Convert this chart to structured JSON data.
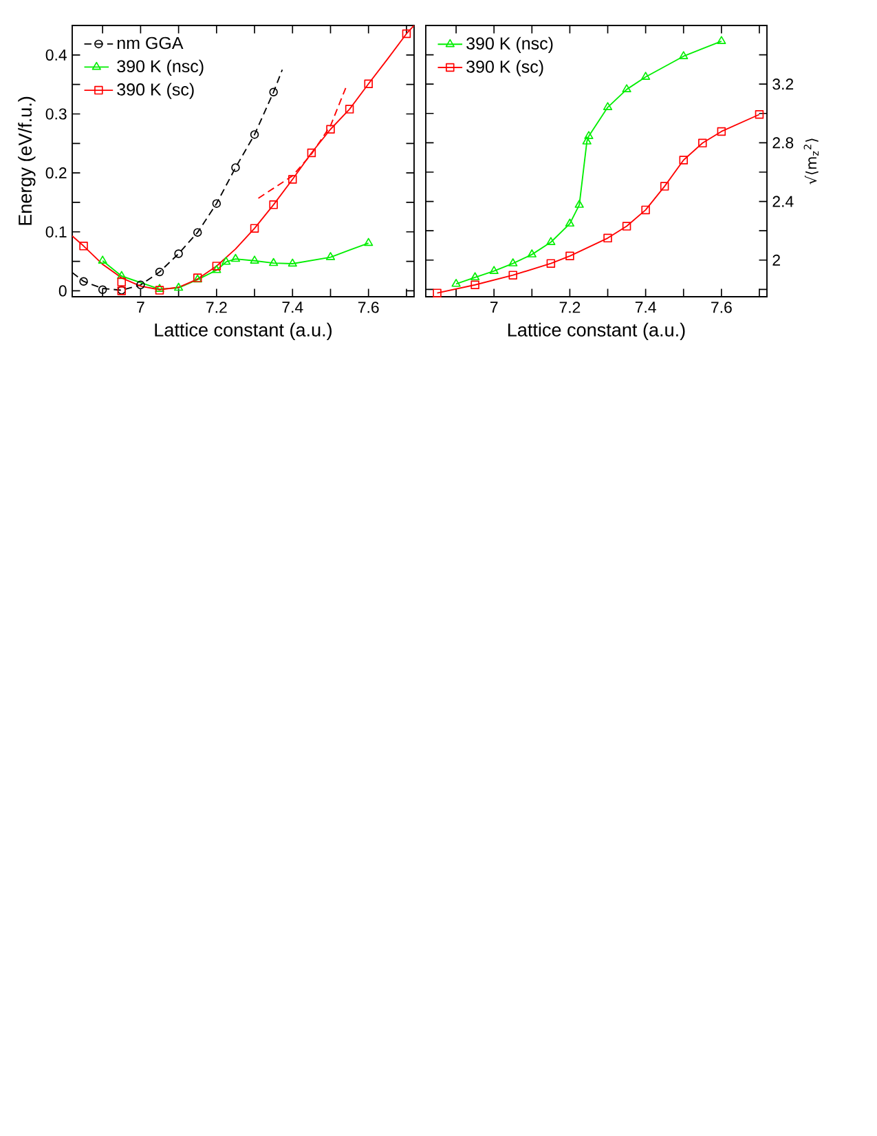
{
  "chart_data": [
    {
      "type": "scatter",
      "xlabel": "Lattice constant (a.u.)",
      "ylabel": "Energy (eV/f.u.)",
      "xlim": [
        6.82,
        7.72
      ],
      "ylim": [
        -0.01,
        0.45
      ],
      "xticks": [
        {
          "value": 6.9,
          "label": null
        },
        7,
        {
          "value": 7.1,
          "label": null
        },
        7.2,
        {
          "value": 7.3,
          "label": null
        },
        7.4,
        {
          "value": 7.5,
          "label": null
        },
        7.6,
        {
          "value": 7.7,
          "label": null
        }
      ],
      "yticks": [
        0,
        {
          "value": 0.05,
          "label": null
        },
        0.1,
        {
          "value": 0.15,
          "label": null
        },
        0.2,
        {
          "value": 0.25,
          "label": null
        },
        0.3,
        {
          "value": 0.35,
          "label": null
        },
        0.4
      ],
      "legend": "top left",
      "series": [
        {
          "name": "nm GGA",
          "type": "scatter",
          "color": "#000000",
          "marker": "circle",
          "line_style": "dashed",
          "x": [
            6.85,
            6.9,
            6.95,
            7.0,
            7.05,
            7.1,
            7.15,
            7.2,
            7.25,
            7.3,
            7.35
          ],
          "values": [
            0.016,
            0.002,
            0.001,
            0.01,
            0.032,
            0.063,
            0.099,
            0.148,
            0.209,
            0.265,
            0.337
          ]
        },
        {
          "name": "390 K (nsc)",
          "type": "line",
          "color": "#00ee00",
          "marker": "triangle",
          "line_style": "solid",
          "x": [
            6.9,
            6.95,
            7.05,
            7.1,
            7.15,
            7.2,
            7.225,
            7.25,
            7.3,
            7.35,
            7.4,
            7.5,
            7.6
          ],
          "values": [
            0.051,
            0.025,
            0.003,
            0.005,
            0.019,
            0.035,
            0.049,
            0.054,
            0.051,
            0.047,
            0.046,
            0.057,
            0.081
          ]
        },
        {
          "name": "390 K (sc)",
          "type": "scatter",
          "color": "#ff0000",
          "marker": "square",
          "line_style": "solid",
          "x": [
            6.85,
            6.95,
            6.95,
            7.05,
            7.15,
            7.2,
            7.3,
            7.35,
            7.4,
            7.45,
            7.5,
            7.55,
            7.6,
            7.7
          ],
          "values": [
            0.076,
            0.015,
            0.0,
            0.001,
            0.022,
            0.042,
            0.106,
            0.146,
            0.189,
            0.234,
            0.274,
            0.308,
            0.351,
            0.436
          ]
        },
        {
          "type": "line",
          "color": "#000000",
          "marker": "none",
          "line_style": "dashed",
          "x": [
            6.82,
            6.85,
            6.9,
            6.95,
            7.0,
            7.05,
            7.1,
            7.15,
            7.2,
            7.25,
            7.3,
            7.35,
            7.373
          ],
          "values": [
            0.031,
            0.016,
            0.004,
            0.001,
            0.01,
            0.032,
            0.063,
            0.099,
            0.148,
            0.209,
            0.265,
            0.337,
            0.375
          ]
        },
        {
          "type": "line",
          "color": "#ff0000",
          "marker": "none",
          "line_style": "solid",
          "x": [
            6.82,
            6.85,
            6.9,
            6.95,
            7.0,
            7.05,
            7.1,
            7.15,
            7.2,
            7.25,
            7.3,
            7.35,
            7.4,
            7.45,
            7.5,
            7.55,
            7.6,
            7.65,
            7.7,
            7.72
          ],
          "values": [
            0.093,
            0.076,
            0.045,
            0.022,
            0.008,
            0.002,
            0.006,
            0.02,
            0.042,
            0.071,
            0.106,
            0.146,
            0.189,
            0.234,
            0.274,
            0.308,
            0.351,
            0.393,
            0.436,
            0.45
          ]
        },
        {
          "type": "line",
          "color": "#ff0000",
          "marker": "none",
          "line_style": "dashed",
          "x": [
            7.31,
            7.4,
            7.45,
            7.5,
            7.54
          ],
          "values": [
            0.157,
            0.195,
            0.232,
            0.28,
            0.344
          ]
        }
      ]
    },
    {
      "type": "line",
      "xlabel": "Lattice constant (a.u.)",
      "y2label": "√⟨m$_{z}$$^{2}$⟩",
      "xlim": [
        6.82,
        7.72
      ],
      "y2lim": [
        1.75,
        3.6
      ],
      "xticks": [
        {
          "value": 6.9,
          "label": null
        },
        7,
        {
          "value": 7.1,
          "label": null
        },
        7.2,
        {
          "value": 7.3,
          "label": null
        },
        7.4,
        {
          "value": 7.5,
          "label": null
        },
        7.6,
        {
          "value": 7.7,
          "label": null
        }
      ],
      "y2ticks": [
        {
          "value": 1.8,
          "label": null
        },
        2,
        {
          "value": 2.2,
          "label": null
        },
        2.4,
        {
          "value": 2.6,
          "label": null
        },
        2.8,
        {
          "value": 3.0,
          "label": null
        },
        3.2,
        {
          "value": 3.4,
          "label": null
        }
      ],
      "legend": "top left",
      "series": [
        {
          "name": "390 K (nsc)",
          "axis": "y2",
          "color": "#00ee00",
          "marker": "triangle",
          "line_style": "solid",
          "x": [
            6.9,
            6.95,
            7.0,
            7.05,
            7.1,
            7.15,
            7.2,
            7.225,
            7.245,
            7.25,
            7.3,
            7.35,
            7.4,
            7.5,
            7.6
          ],
          "values": [
            1.837,
            1.882,
            1.925,
            1.977,
            2.038,
            2.122,
            2.248,
            2.376,
            2.808,
            2.845,
            3.042,
            3.164,
            3.249,
            3.39,
            3.493
          ]
        },
        {
          "name": "390 K (sc)",
          "axis": "y2",
          "color": "#ff0000",
          "marker": "square",
          "line_style": "solid",
          "x": [
            6.85,
            6.95,
            7.05,
            7.15,
            7.2,
            7.3,
            7.35,
            7.4,
            7.45,
            7.5,
            7.55,
            7.6,
            7.7
          ],
          "values": [
            1.775,
            1.831,
            1.897,
            1.977,
            2.028,
            2.15,
            2.231,
            2.342,
            2.503,
            2.682,
            2.798,
            2.877,
            2.993
          ]
        }
      ]
    }
  ]
}
